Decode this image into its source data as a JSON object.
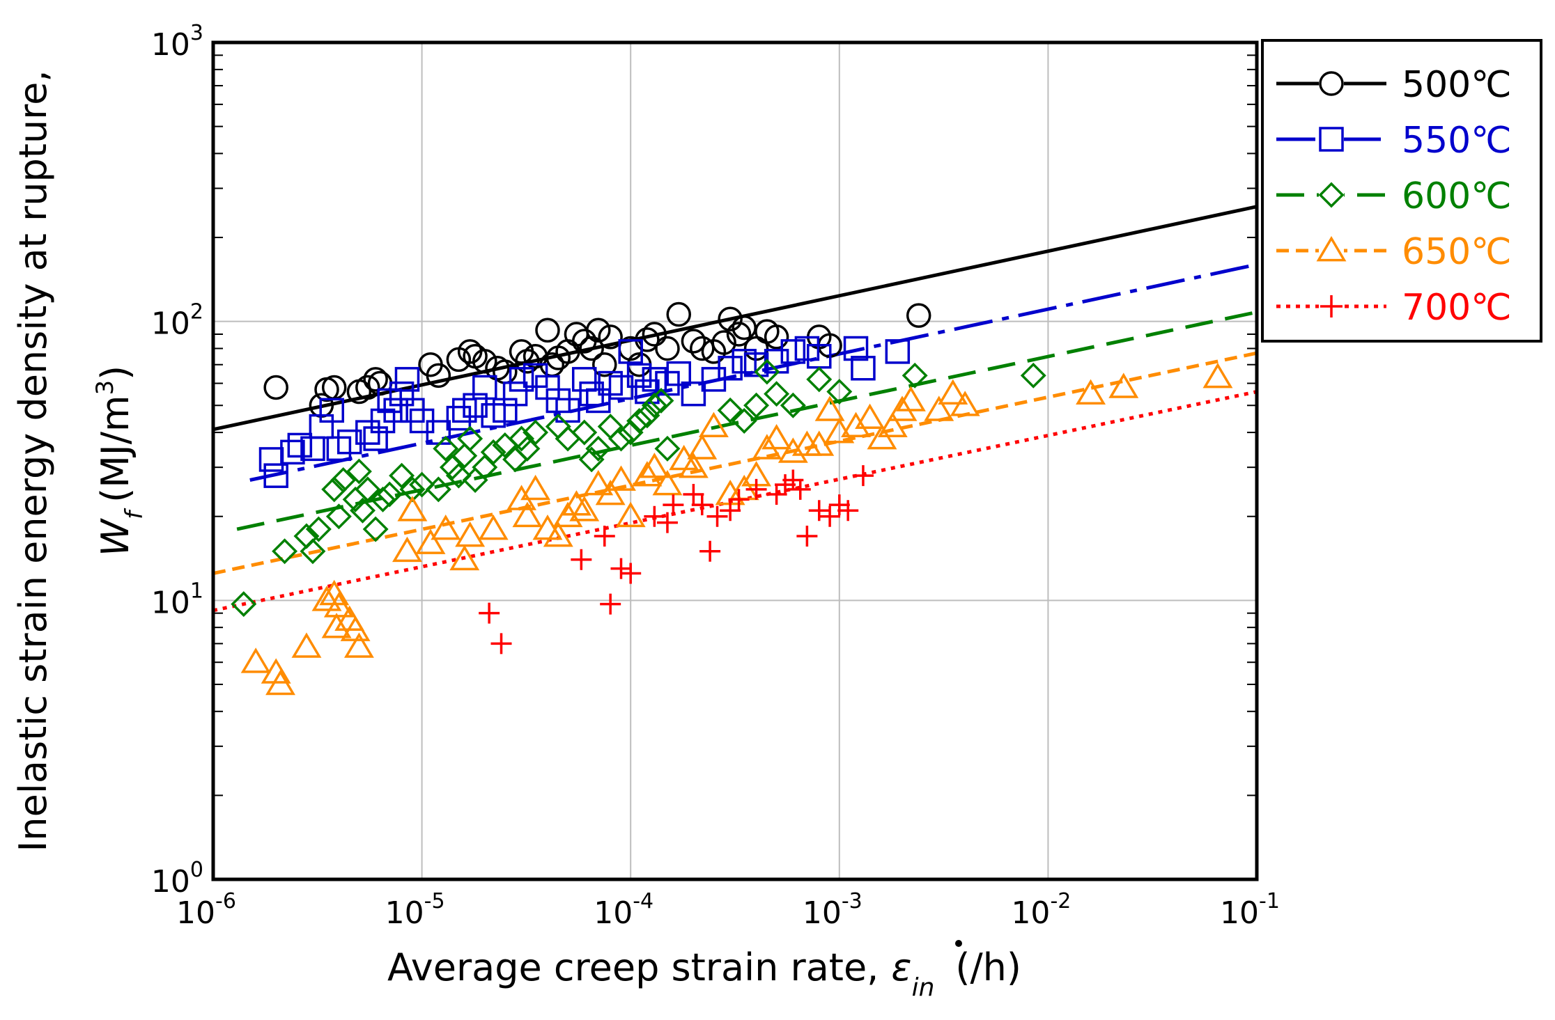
{
  "chart_data": {
    "type": "scatter",
    "title": "",
    "xlabel": "Average creep strain rate,",
    "xlabel_symbol": "ε",
    "xlabel_sub": "in",
    "xlabel_unit": "(/h)",
    "ylabel_line1": "Inelastic strain energy density at rupture,",
    "ylabel_symbol": "W",
    "ylabel_sub": "f",
    "ylabel_unit": "(MJ/m",
    "ylabel_sup": "3",
    "ylabel_close": ")",
    "x_scale": "log",
    "y_scale": "log",
    "xlim": [
      1e-06,
      0.1
    ],
    "ylim": [
      1,
      1000
    ],
    "grid": true,
    "legend_position": "top-right outside",
    "x_ticks": [
      {
        "base": "10",
        "exp": "-6",
        "value": 1e-06
      },
      {
        "base": "10",
        "exp": "-5",
        "value": 1e-05
      },
      {
        "base": "10",
        "exp": "-4",
        "value": 0.0001
      },
      {
        "base": "10",
        "exp": "-3",
        "value": 0.001
      },
      {
        "base": "10",
        "exp": "-2",
        "value": 0.01
      },
      {
        "base": "10",
        "exp": "-1",
        "value": 0.1
      }
    ],
    "y_ticks": [
      {
        "base": "10",
        "exp": "0",
        "value": 1
      },
      {
        "base": "10",
        "exp": "1",
        "value": 10
      },
      {
        "base": "10",
        "exp": "2",
        "value": 100
      },
      {
        "base": "10",
        "exp": "3",
        "value": 1000
      }
    ],
    "series": [
      {
        "name": "500℃",
        "color": "#000000",
        "marker": "circle",
        "line": "solid",
        "fit": [
          [
            1e-06,
            41
          ],
          [
            0.1,
            258
          ]
        ],
        "points": [
          [
            2e-06,
            58
          ],
          [
            3.3e-06,
            50
          ],
          [
            3.5e-06,
            57
          ],
          [
            3.8e-06,
            58
          ],
          [
            5e-06,
            56
          ],
          [
            5.5e-06,
            58
          ],
          [
            6e-06,
            62
          ],
          [
            6.3e-06,
            60
          ],
          [
            1.1e-05,
            70
          ],
          [
            1.2e-05,
            64
          ],
          [
            1.5e-05,
            73
          ],
          [
            1.7e-05,
            78
          ],
          [
            1.8e-05,
            75
          ],
          [
            2e-05,
            72
          ],
          [
            2.3e-05,
            68
          ],
          [
            2.5e-05,
            66
          ],
          [
            3e-05,
            78
          ],
          [
            3.2e-05,
            72
          ],
          [
            3.5e-05,
            75
          ],
          [
            4e-05,
            93
          ],
          [
            4.2e-05,
            70
          ],
          [
            4.5e-05,
            74
          ],
          [
            5e-05,
            78
          ],
          [
            5.5e-05,
            90
          ],
          [
            6e-05,
            85
          ],
          [
            6.5e-05,
            80
          ],
          [
            7e-05,
            93
          ],
          [
            7.5e-05,
            70
          ],
          [
            8e-05,
            88
          ],
          [
            0.0001,
            80
          ],
          [
            0.00011,
            70
          ],
          [
            0.00012,
            86
          ],
          [
            0.00013,
            90
          ],
          [
            0.00015,
            80
          ],
          [
            0.00017,
            106
          ],
          [
            0.0002,
            85
          ],
          [
            0.00022,
            80
          ],
          [
            0.00025,
            78
          ],
          [
            0.00028,
            84
          ],
          [
            0.0003,
            102
          ],
          [
            0.00033,
            90
          ],
          [
            0.00035,
            95
          ],
          [
            0.0004,
            80
          ],
          [
            0.00045,
            92
          ],
          [
            0.0005,
            88
          ],
          [
            0.0008,
            88
          ],
          [
            0.0009,
            82
          ],
          [
            0.0024,
            105
          ]
        ]
      },
      {
        "name": "550℃",
        "color": "#0000cc",
        "marker": "square",
        "line": "dashdot",
        "fit": [
          [
            1.5e-06,
            27
          ],
          [
            0.1,
            160
          ]
        ],
        "points": [
          [
            1.9e-06,
            32
          ],
          [
            2e-06,
            28
          ],
          [
            2.4e-06,
            34
          ],
          [
            2.6e-06,
            36
          ],
          [
            3e-06,
            35
          ],
          [
            3.3e-06,
            42
          ],
          [
            3.7e-06,
            48
          ],
          [
            4e-06,
            35
          ],
          [
            4.5e-06,
            37
          ],
          [
            5.5e-06,
            40
          ],
          [
            6e-06,
            38
          ],
          [
            6.5e-06,
            44
          ],
          [
            7e-06,
            52
          ],
          [
            7.5e-06,
            48
          ],
          [
            8e-06,
            55
          ],
          [
            8.5e-06,
            62
          ],
          [
            9e-06,
            48
          ],
          [
            1e-05,
            44
          ],
          [
            1.2e-05,
            40
          ],
          [
            1.5e-05,
            45
          ],
          [
            1.6e-05,
            48
          ],
          [
            1.8e-05,
            50
          ],
          [
            2e-05,
            58
          ],
          [
            2.2e-05,
            46
          ],
          [
            2.5e-05,
            48
          ],
          [
            2.8e-05,
            55
          ],
          [
            3e-05,
            62
          ],
          [
            3.5e-05,
            64
          ],
          [
            4e-05,
            58
          ],
          [
            4.5e-05,
            52
          ],
          [
            5e-05,
            48
          ],
          [
            6e-05,
            62
          ],
          [
            6.5e-05,
            55
          ],
          [
            7e-05,
            52
          ],
          [
            8e-05,
            60
          ],
          [
            9e-05,
            58
          ],
          [
            0.0001,
            78
          ],
          [
            0.00011,
            64
          ],
          [
            0.00012,
            56
          ],
          [
            0.00013,
            62
          ],
          [
            0.00015,
            60
          ],
          [
            0.00017,
            65
          ],
          [
            0.0002,
            55
          ],
          [
            0.00025,
            62
          ],
          [
            0.0003,
            68
          ],
          [
            0.00035,
            72
          ],
          [
            0.0004,
            70
          ],
          [
            0.0005,
            72
          ],
          [
            0.0006,
            78
          ],
          [
            0.0007,
            80
          ],
          [
            0.0008,
            75
          ],
          [
            0.0012,
            80
          ],
          [
            0.0013,
            68
          ],
          [
            0.0019,
            78
          ]
        ]
      },
      {
        "name": "600℃",
        "color": "#008000",
        "marker": "diamond",
        "line": "dashed",
        "fit": [
          [
            1.3e-06,
            18
          ],
          [
            0.1,
            108
          ]
        ],
        "points": [
          [
            1.4e-06,
            9.7
          ],
          [
            2.2e-06,
            15
          ],
          [
            2.8e-06,
            17
          ],
          [
            3e-06,
            15
          ],
          [
            3.2e-06,
            18
          ],
          [
            3.8e-06,
            25
          ],
          [
            4e-06,
            20
          ],
          [
            4.2e-06,
            27
          ],
          [
            4.8e-06,
            23
          ],
          [
            5e-06,
            29
          ],
          [
            5.2e-06,
            21
          ],
          [
            5.5e-06,
            25
          ],
          [
            6e-06,
            18
          ],
          [
            6.5e-06,
            23
          ],
          [
            7e-06,
            24
          ],
          [
            8e-06,
            28
          ],
          [
            9e-06,
            25
          ],
          [
            1e-05,
            26
          ],
          [
            1.2e-05,
            25
          ],
          [
            1.3e-05,
            35
          ],
          [
            1.4e-05,
            30
          ],
          [
            1.5e-05,
            28
          ],
          [
            1.6e-05,
            33
          ],
          [
            1.7e-05,
            38
          ],
          [
            1.8e-05,
            27
          ],
          [
            2e-05,
            30
          ],
          [
            2.2e-05,
            34
          ],
          [
            2.5e-05,
            36
          ],
          [
            2.8e-05,
            32
          ],
          [
            3e-05,
            38
          ],
          [
            3.2e-05,
            35
          ],
          [
            3.5e-05,
            40
          ],
          [
            4.5e-05,
            42
          ],
          [
            5e-05,
            38
          ],
          [
            6e-05,
            40
          ],
          [
            6.5e-05,
            32
          ],
          [
            7e-05,
            35
          ],
          [
            8e-05,
            42
          ],
          [
            9e-05,
            38
          ],
          [
            0.0001,
            40
          ],
          [
            0.00011,
            44
          ],
          [
            0.00012,
            46
          ],
          [
            0.00013,
            50
          ],
          [
            0.00014,
            52
          ],
          [
            0.00015,
            35
          ],
          [
            0.0003,
            48
          ],
          [
            0.00035,
            44
          ],
          [
            0.0004,
            50
          ],
          [
            0.00045,
            66
          ],
          [
            0.0005,
            55
          ],
          [
            0.0006,
            50
          ],
          [
            0.0008,
            62
          ],
          [
            0.001,
            56
          ],
          [
            0.0023,
            64
          ],
          [
            0.0085,
            64
          ]
        ]
      },
      {
        "name": "650℃",
        "color": "#ff8c00",
        "marker": "triangle",
        "line": "dashed-short",
        "fit": [
          [
            1e-06,
            12.5
          ],
          [
            0.1,
            77
          ]
        ],
        "points": [
          [
            1.6e-06,
            6
          ],
          [
            2e-06,
            5.5
          ],
          [
            2.1e-06,
            5
          ],
          [
            2.8e-06,
            6.8
          ],
          [
            3.5e-06,
            10
          ],
          [
            3.8e-06,
            10.5
          ],
          [
            3.9e-06,
            8
          ],
          [
            4e-06,
            9.5
          ],
          [
            4.5e-06,
            8.5
          ],
          [
            4.8e-06,
            7.8
          ],
          [
            5e-06,
            6.8
          ],
          [
            8.5e-06,
            15
          ],
          [
            9e-06,
            21
          ],
          [
            1.1e-05,
            16
          ],
          [
            1.3e-05,
            18
          ],
          [
            1.6e-05,
            14
          ],
          [
            1.7e-05,
            17
          ],
          [
            2.2e-05,
            18
          ],
          [
            3e-05,
            23
          ],
          [
            3.2e-05,
            20
          ],
          [
            3.5e-05,
            25
          ],
          [
            4e-05,
            18
          ],
          [
            4.5e-05,
            17
          ],
          [
            5e-05,
            20
          ],
          [
            5.5e-05,
            22
          ],
          [
            6e-05,
            21
          ],
          [
            7e-05,
            26
          ],
          [
            8e-05,
            24
          ],
          [
            9e-05,
            27
          ],
          [
            0.0001,
            20
          ],
          [
            0.00012,
            28
          ],
          [
            0.00013,
            30
          ],
          [
            0.00015,
            26
          ],
          [
            0.00018,
            32
          ],
          [
            0.0002,
            30
          ],
          [
            0.00022,
            35
          ],
          [
            0.00025,
            42
          ],
          [
            0.0003,
            24
          ],
          [
            0.00035,
            25
          ],
          [
            0.0004,
            28
          ],
          [
            0.00045,
            35
          ],
          [
            0.0005,
            38
          ],
          [
            0.0006,
            34
          ],
          [
            0.0007,
            36
          ],
          [
            0.0008,
            36
          ],
          [
            0.0009,
            48
          ],
          [
            0.001,
            40
          ],
          [
            0.0012,
            42
          ],
          [
            0.0014,
            45
          ],
          [
            0.0016,
            38
          ],
          [
            0.0018,
            42
          ],
          [
            0.002,
            48
          ],
          [
            0.0022,
            52
          ],
          [
            0.003,
            48
          ],
          [
            0.0035,
            55
          ],
          [
            0.004,
            50
          ],
          [
            0.016,
            55
          ],
          [
            0.023,
            58
          ],
          [
            0.065,
            63
          ]
        ]
      },
      {
        "name": "700℃",
        "color": "#ff0000",
        "marker": "plus",
        "line": "dotted",
        "fit": [
          [
            1e-06,
            9.2
          ],
          [
            0.1,
            56
          ]
        ],
        "points": [
          [
            2.1e-05,
            9
          ],
          [
            2.4e-05,
            7
          ],
          [
            5.8e-05,
            14
          ],
          [
            7.5e-05,
            17
          ],
          [
            8e-05,
            9.7
          ],
          [
            9e-05,
            13
          ],
          [
            0.0001,
            12.5
          ],
          [
            0.00013,
            20
          ],
          [
            0.00015,
            19
          ],
          [
            0.00016,
            22
          ],
          [
            0.0002,
            24
          ],
          [
            0.00022,
            22
          ],
          [
            0.00024,
            15
          ],
          [
            0.00026,
            20
          ],
          [
            0.0003,
            21
          ],
          [
            0.00033,
            23
          ],
          [
            0.0004,
            25
          ],
          [
            0.0005,
            24
          ],
          [
            0.00055,
            26
          ],
          [
            0.0006,
            27
          ],
          [
            0.00065,
            25
          ],
          [
            0.0007,
            17
          ],
          [
            0.0008,
            21
          ],
          [
            0.0009,
            20
          ],
          [
            0.001,
            22
          ],
          [
            0.0011,
            21
          ],
          [
            0.0013,
            28
          ]
        ]
      }
    ]
  }
}
